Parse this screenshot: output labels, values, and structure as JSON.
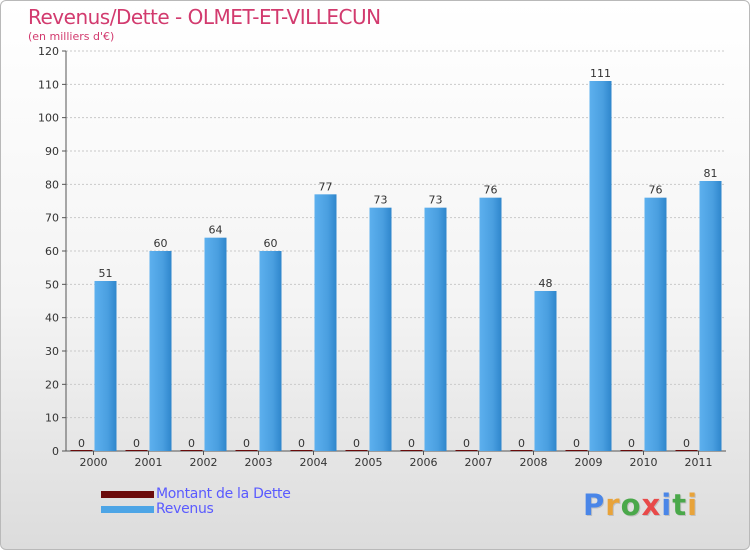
{
  "title": "Revenus/Dette - OLMET-ET-VILLECUN",
  "subtitle": "(en milliers d'€)",
  "logo": {
    "text": "Proxiti",
    "colors": [
      "#4a86e8",
      "#e8a33a",
      "#4aa84a",
      "#e84a4a",
      "#4a86e8",
      "#4aa84a",
      "#e8a33a"
    ]
  },
  "colors": {
    "title": "#d23a6e",
    "legend_text": "#5a5aff",
    "dette": "#6b0b0b",
    "revenus": "#4da5e6",
    "revenus_dark": "#2a7fc4",
    "axis_text": "#333333",
    "grid": "#c9c9c9"
  },
  "chart_data": {
    "type": "bar",
    "title": "Revenus/Dette - OLMET-ET-VILLECUN",
    "subtitle": "(en milliers d'€)",
    "categories": [
      "2000",
      "2001",
      "2002",
      "2003",
      "2004",
      "2005",
      "2006",
      "2007",
      "2008",
      "2009",
      "2010",
      "2011"
    ],
    "series": [
      {
        "name": "Montant de la Dette",
        "color": "#6b0b0b",
        "values": [
          0,
          0,
          0,
          0,
          0,
          0,
          0,
          0,
          0,
          0,
          0,
          0
        ]
      },
      {
        "name": "Revenus",
        "color": "#4da5e6",
        "values": [
          51,
          60,
          64,
          60,
          77,
          73,
          73,
          76,
          48,
          111,
          76,
          81
        ]
      }
    ],
    "ylim": [
      0,
      120
    ],
    "yticks": [
      0,
      10,
      20,
      30,
      40,
      50,
      60,
      70,
      80,
      90,
      100,
      110,
      120
    ],
    "grid": true,
    "legend_position": "bottom-left"
  }
}
